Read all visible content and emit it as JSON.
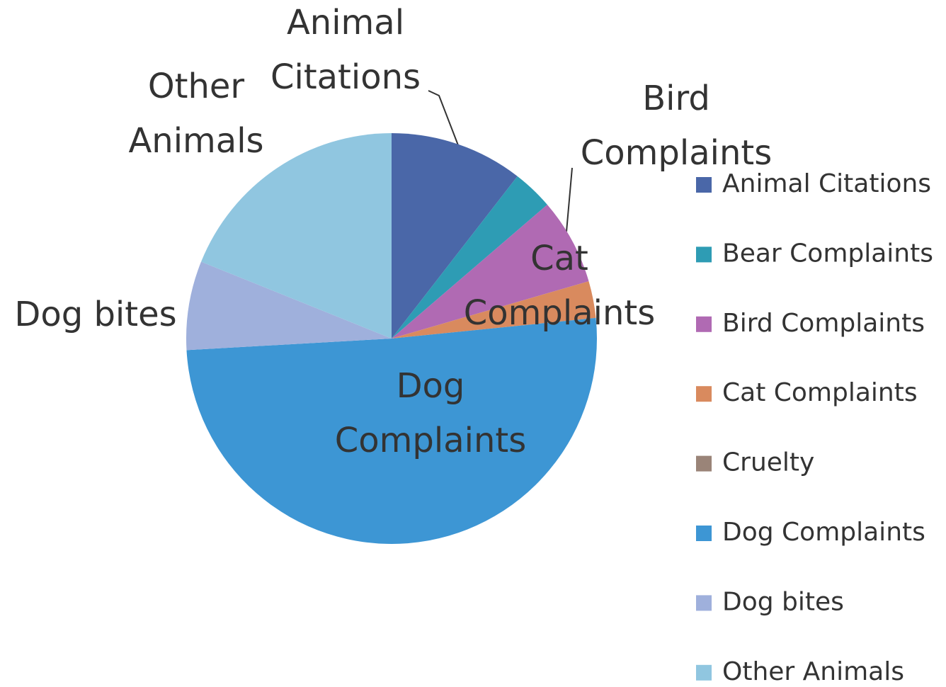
{
  "chart_data": {
    "type": "pie",
    "categories": [
      "Animal Citations",
      "Bear Complaints",
      "Bird Complaints",
      "Cat Complaints",
      "Cruelty",
      "Dog Complaints",
      "Dog bites",
      "Other Animals"
    ],
    "values": [
      10.5,
      3.2,
      6.8,
      2.9,
      0,
      50.7,
      7,
      18.9
    ],
    "colors": [
      "#4a67a8",
      "#2e9cb4",
      "#b06ab3",
      "#d98a5e",
      "#9a8478",
      "#3d96d4",
      "#9fb0dc",
      "#90c6e0"
    ],
    "legend": "right"
  }
}
